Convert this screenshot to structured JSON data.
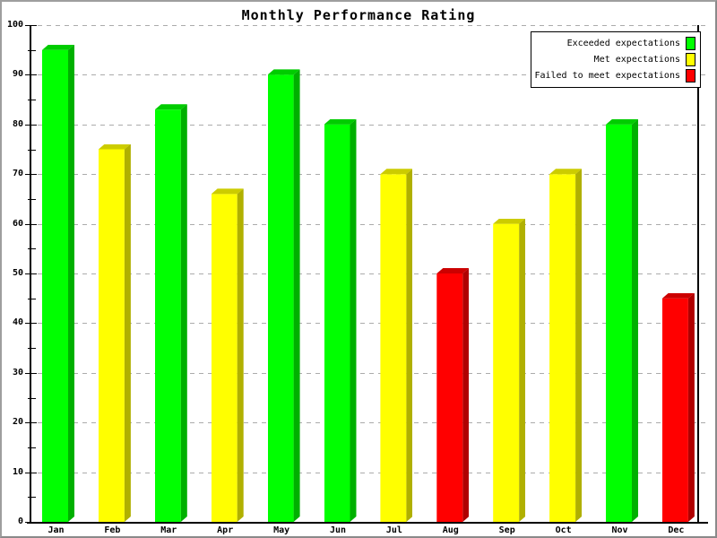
{
  "chart_data": {
    "type": "bar",
    "title": "Monthly Performance Rating",
    "categories": [
      "Jan",
      "Feb",
      "Mar",
      "Apr",
      "May",
      "Jun",
      "Jul",
      "Aug",
      "Sep",
      "Oct",
      "Nov",
      "Dec"
    ],
    "values": [
      95,
      75,
      83,
      66,
      90,
      80,
      70,
      50,
      60,
      70,
      80,
      45
    ],
    "statuses": [
      "exceeded",
      "met",
      "exceeded",
      "met",
      "exceeded",
      "exceeded",
      "met",
      "failed",
      "met",
      "met",
      "exceeded",
      "failed"
    ],
    "ylim": [
      0,
      100
    ],
    "yticks": [
      0,
      10,
      20,
      30,
      40,
      50,
      60,
      70,
      80,
      90,
      100
    ],
    "ytick_minor_step": 5,
    "grid": {
      "horizontal": true,
      "style": "dashed",
      "color": "#ababab"
    },
    "bar_style": "3d-bevel",
    "palette": {
      "exceeded": {
        "front": "#00ff00",
        "top": "#00cc00",
        "side": "#00b000"
      },
      "met": {
        "front": "#ffff00",
        "top": "#cccc00",
        "side": "#b0b000"
      },
      "failed": {
        "front": "#ff0000",
        "top": "#cc0000",
        "side": "#b00000"
      }
    },
    "legend": {
      "position": "top-right",
      "items": [
        {
          "label": "Exceeded expectations",
          "status": "exceeded",
          "color": "#00ff00"
        },
        {
          "label": "Met expectations",
          "status": "met",
          "color": "#ffff00"
        },
        {
          "label": "Failed to meet expectations",
          "status": "failed",
          "color": "#ff0000"
        }
      ]
    }
  }
}
